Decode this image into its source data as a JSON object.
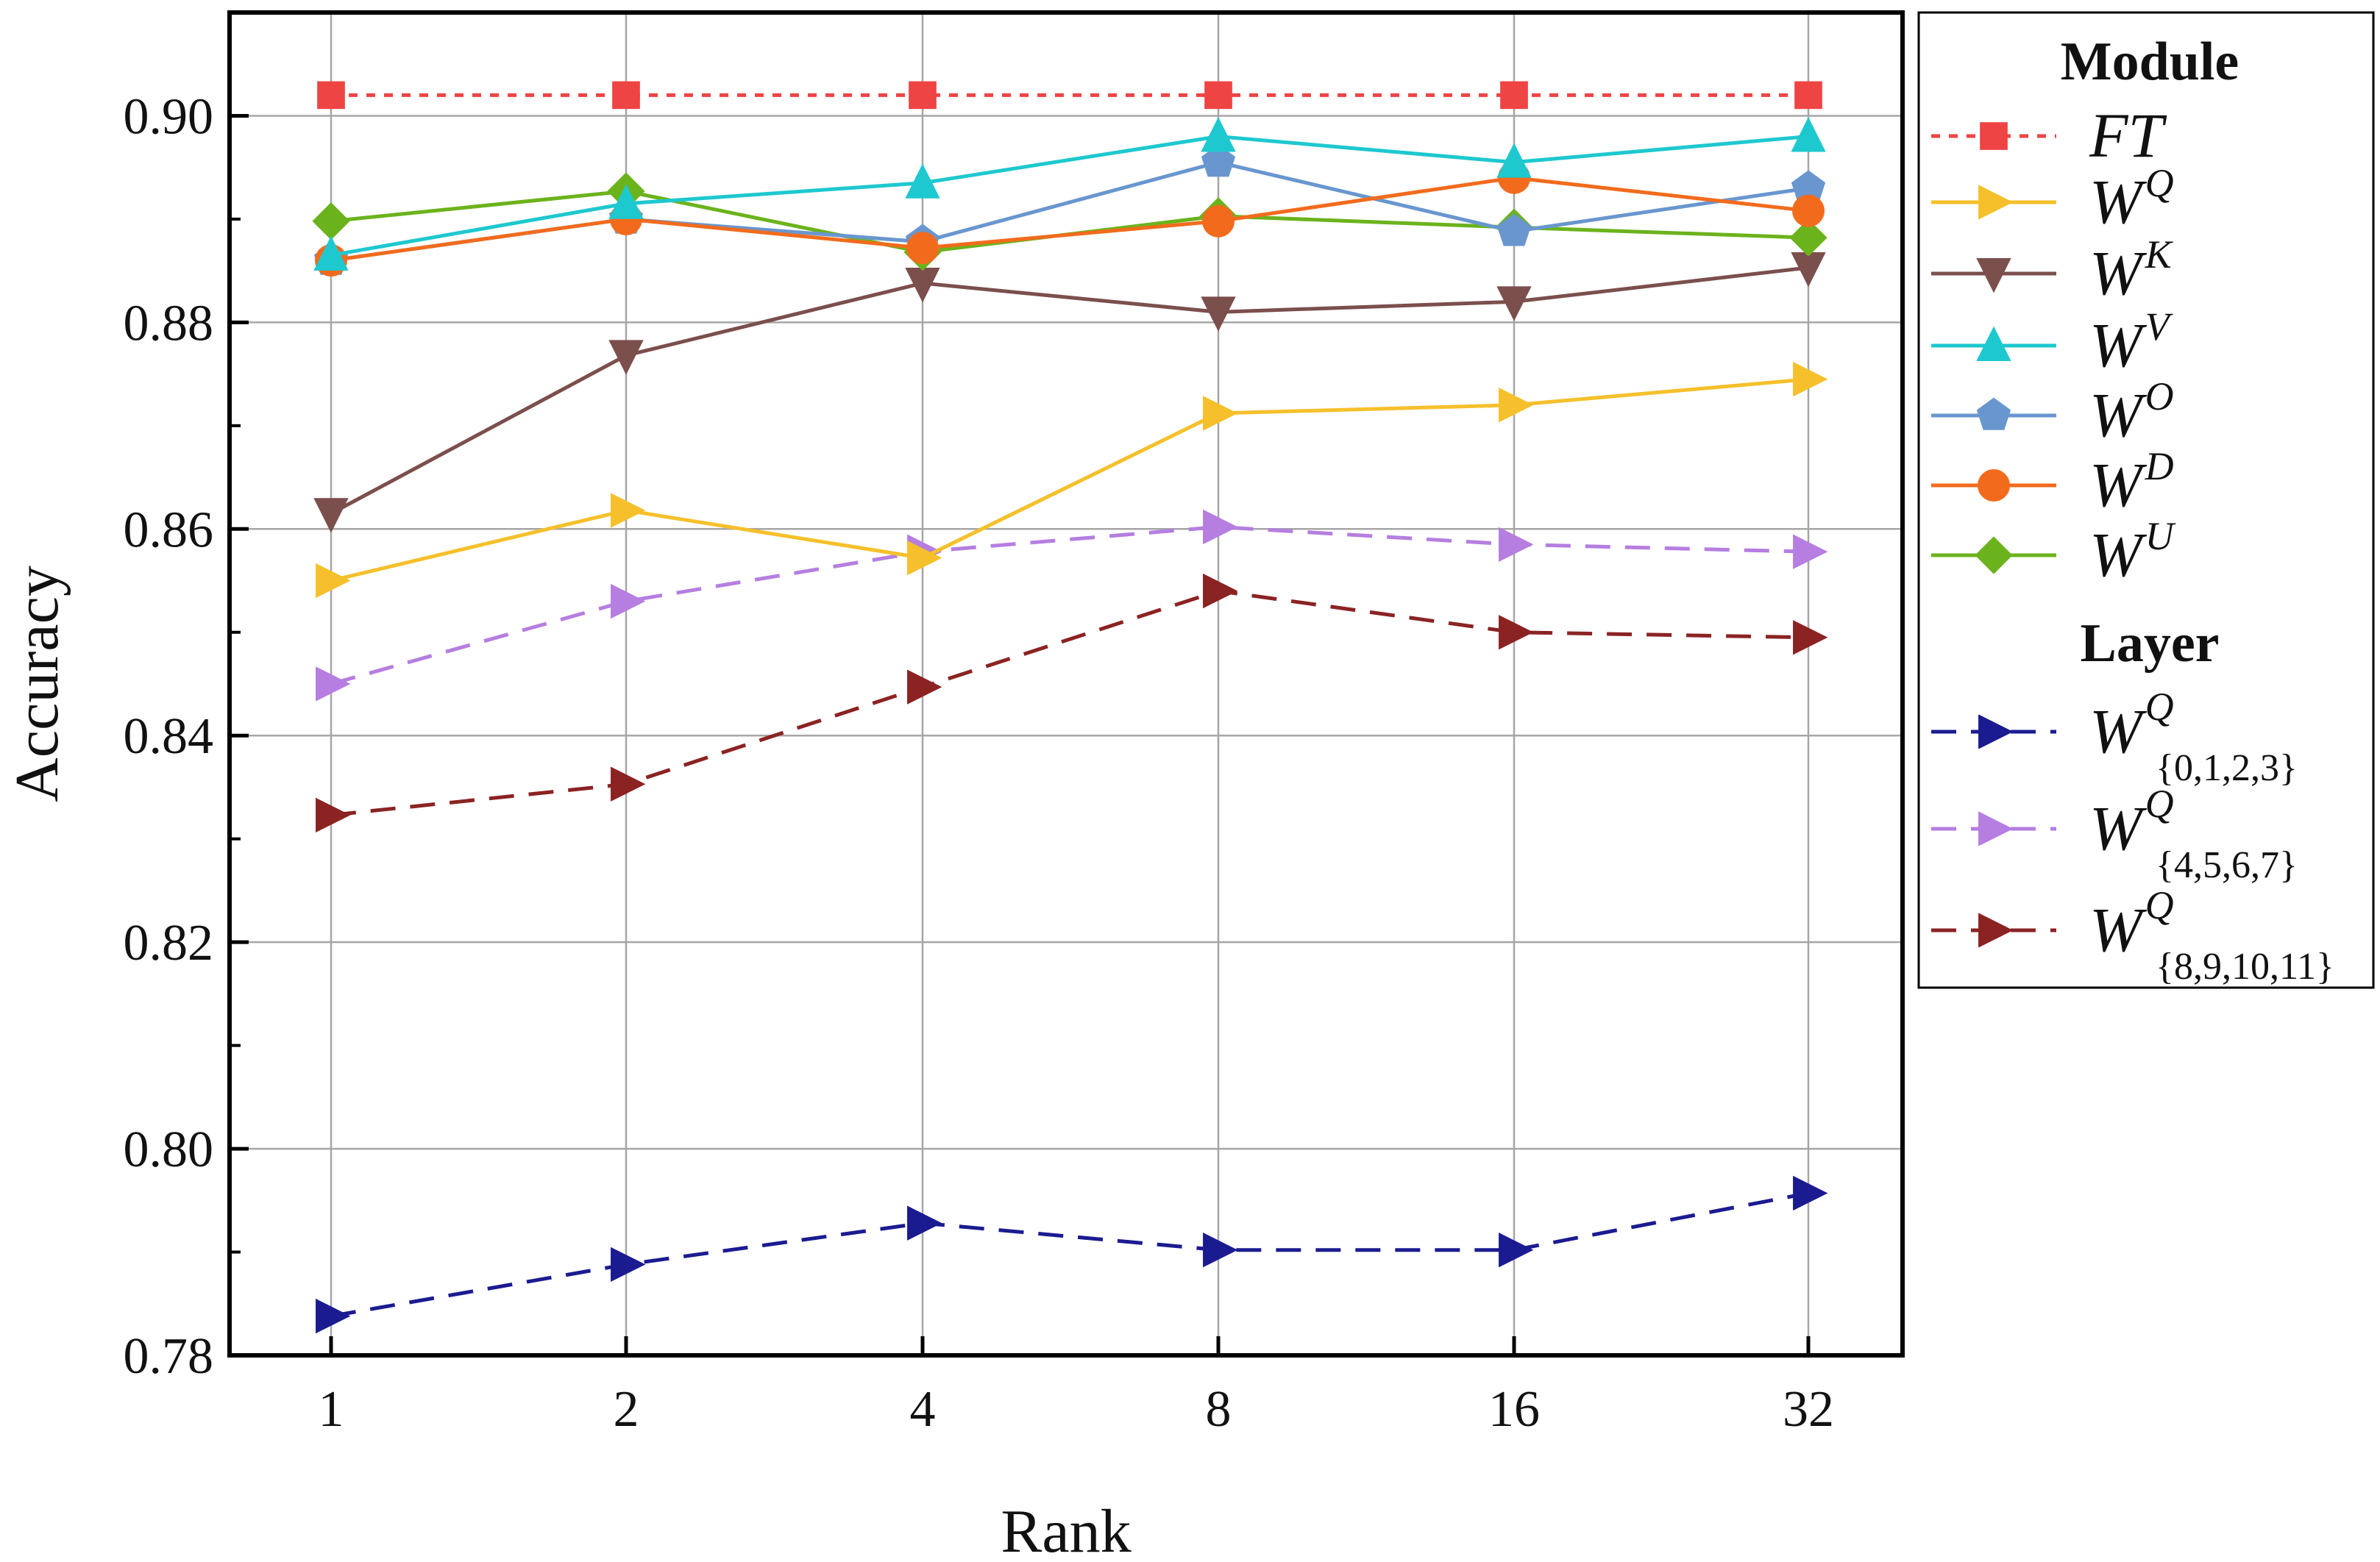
{
  "chart_data": {
    "type": "line",
    "title": "",
    "xlabel": "Rank",
    "ylabel": "Accuracy",
    "categories": [
      "1",
      "2",
      "4",
      "8",
      "16",
      "32"
    ],
    "ylim": [
      0.78,
      0.91
    ],
    "yticks": [
      "0.78",
      "0.80",
      "0.82",
      "0.84",
      "0.86",
      "0.88",
      "0.90"
    ],
    "grid": true,
    "legend_position": "outside-right",
    "legend_groups": [
      {
        "heading": "Module",
        "series_names": [
          "FT",
          "W^Q",
          "W^K",
          "W^V",
          "W^O",
          "W^D",
          "W^U"
        ]
      },
      {
        "heading": "Layer",
        "series_names": [
          "W^Q_{0,1,2,3}",
          "W^Q_{4,5,6,7}",
          "W^Q_{8,9,10,11}"
        ]
      }
    ],
    "series": [
      {
        "name": "FT",
        "base": "FT",
        "sup": "",
        "sub": "",
        "color": "#ef4444",
        "marker": "square",
        "dash": "dotted",
        "values": [
          0.902,
          0.902,
          0.902,
          0.902,
          0.902,
          0.902
        ]
      },
      {
        "name": "W^Q",
        "base": "W",
        "sup": "Q",
        "sub": "",
        "color": "#f5c02b",
        "marker": "triangle-right",
        "dash": "solid",
        "values": [
          0.855,
          0.8618,
          0.8572,
          0.8712,
          0.872,
          0.8745
        ]
      },
      {
        "name": "W^K",
        "base": "W",
        "sup": "K",
        "sub": "",
        "color": "#7b4f4c",
        "marker": "triangle-down",
        "dash": "solid",
        "values": [
          0.8615,
          0.8768,
          0.8838,
          0.881,
          0.882,
          0.8853
        ]
      },
      {
        "name": "W^V",
        "base": "W",
        "sup": "V",
        "sub": "",
        "color": "#1ec8cf",
        "marker": "triangle-up",
        "dash": "solid",
        "values": [
          0.8865,
          0.8915,
          0.8935,
          0.898,
          0.8955,
          0.898
        ]
      },
      {
        "name": "W^O",
        "base": "W",
        "sup": "O",
        "sub": "",
        "color": "#6996cf",
        "marker": "pentagon",
        "dash": "solid",
        "values": [
          0.886,
          0.89,
          0.8878,
          0.8955,
          0.8888,
          0.893
        ]
      },
      {
        "name": "W^D",
        "base": "W",
        "sup": "D",
        "sub": "",
        "color": "#f26b1d",
        "marker": "circle",
        "dash": "solid",
        "values": [
          0.886,
          0.89,
          0.8872,
          0.8898,
          0.894,
          0.8908
        ]
      },
      {
        "name": "W^U",
        "base": "W",
        "sup": "U",
        "sub": "",
        "color": "#6bb31c",
        "marker": "diamond",
        "dash": "solid",
        "values": [
          0.8898,
          0.8927,
          0.8868,
          0.8903,
          0.8892,
          0.8882
        ]
      },
      {
        "name": "W^Q_{0,1,2,3}",
        "base": "W",
        "sup": "Q",
        "sub": "{0,1,2,3}",
        "color": "#1b1b91",
        "marker": "triangle-right",
        "dash": "dashed",
        "values": [
          0.7838,
          0.7888,
          0.7928,
          0.7902,
          0.7902,
          0.7957
        ]
      },
      {
        "name": "W^Q_{4,5,6,7}",
        "base": "W",
        "sup": "Q",
        "sub": "{4,5,6,7}",
        "color": "#b57ee0",
        "marker": "triangle-right",
        "dash": "dashed",
        "values": [
          0.845,
          0.853,
          0.8578,
          0.8602,
          0.8585,
          0.8578
        ]
      },
      {
        "name": "W^Q_{8,9,10,11}",
        "base": "W",
        "sup": "Q",
        "sub": "{8,9,10,11}",
        "color": "#8b2323",
        "marker": "triangle-right",
        "dash": "dashed",
        "values": [
          0.8323,
          0.8353,
          0.8447,
          0.854,
          0.85,
          0.8495
        ]
      }
    ]
  }
}
